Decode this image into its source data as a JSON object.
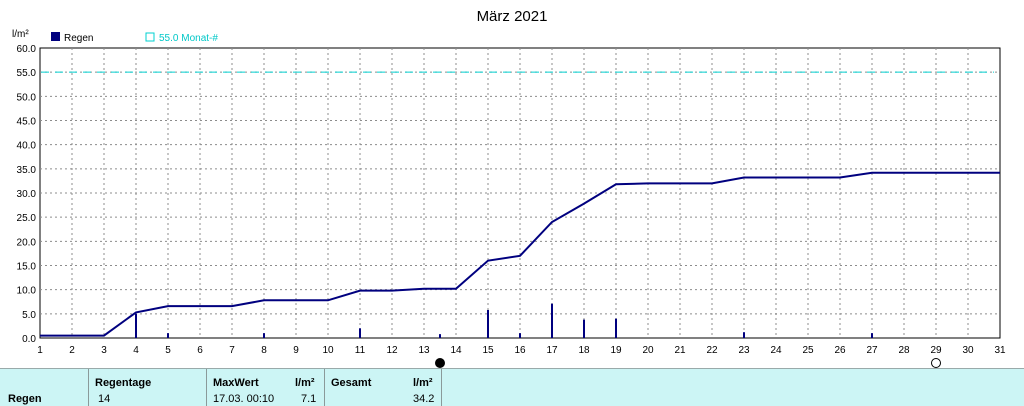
{
  "chart_data": {
    "type": "bar+line",
    "title": "März 2021",
    "y_unit": "l/m²",
    "ylim": [
      0,
      60
    ],
    "y_ticks": [
      "0.0",
      "5.0",
      "10.0",
      "15.0",
      "20.0",
      "25.0",
      "30.0",
      "35.0",
      "40.0",
      "45.0",
      "50.0",
      "55.0",
      "60.0"
    ],
    "xlim": [
      1,
      31
    ],
    "x_ticks": [
      "1",
      "2",
      "3",
      "4",
      "5",
      "6",
      "7",
      "8",
      "9",
      "10",
      "11",
      "12",
      "13",
      "14",
      "15",
      "16",
      "17",
      "18",
      "19",
      "20",
      "21",
      "22",
      "23",
      "24",
      "25",
      "26",
      "27",
      "28",
      "29",
      "30",
      "31"
    ],
    "grid": true,
    "legend": [
      {
        "name": "Regen",
        "color": "#00007f",
        "symbol": "bar"
      },
      {
        "name": "55.0 Monat-#",
        "color": "#00d0d0",
        "symbol": "dashed-line"
      }
    ],
    "reference_line": {
      "value": 55,
      "color": "#00d0d0"
    },
    "daily_rain": [
      {
        "day": 4,
        "value": 5.0
      },
      {
        "day": 5,
        "value": 1.0
      },
      {
        "day": 8,
        "value": 1.0
      },
      {
        "day": 11,
        "value": 2.0
      },
      {
        "day": 13.5,
        "value": 0.8
      },
      {
        "day": 15,
        "value": 5.8
      },
      {
        "day": 16,
        "value": 1.0
      },
      {
        "day": 17,
        "value": 7.1
      },
      {
        "day": 18,
        "value": 3.8
      },
      {
        "day": 19,
        "value": 4.0
      },
      {
        "day": 23,
        "value": 1.2
      },
      {
        "day": 27,
        "value": 1.0
      }
    ],
    "cumulative": {
      "x": [
        1,
        3,
        4,
        5,
        7,
        8,
        10,
        11,
        12,
        13,
        14,
        15,
        16,
        17,
        18,
        19,
        20,
        22,
        23,
        26,
        27,
        31
      ],
      "y": [
        0.5,
        0.5,
        5.3,
        6.6,
        6.6,
        7.8,
        7.8,
        9.8,
        9.8,
        10.2,
        10.2,
        16.0,
        17.0,
        24.0,
        27.8,
        31.8,
        32.0,
        32.0,
        33.2,
        33.2,
        34.2,
        34.2
      ]
    },
    "moon_markers": [
      {
        "day": 13.5,
        "phase": "new"
      },
      {
        "day": 29,
        "phase": "full"
      }
    ]
  },
  "summary": {
    "row_label": "Regen",
    "regentage_header": "Regentage",
    "regentage_value": "14",
    "maxwert_header": "MaxWert",
    "maxwert_unit": "l/m²",
    "maxwert_time": "17.03.  00:10",
    "maxwert_value": "7.1",
    "gesamt_header": "Gesamt",
    "gesamt_unit": "l/m²",
    "gesamt_value": "34.2"
  }
}
